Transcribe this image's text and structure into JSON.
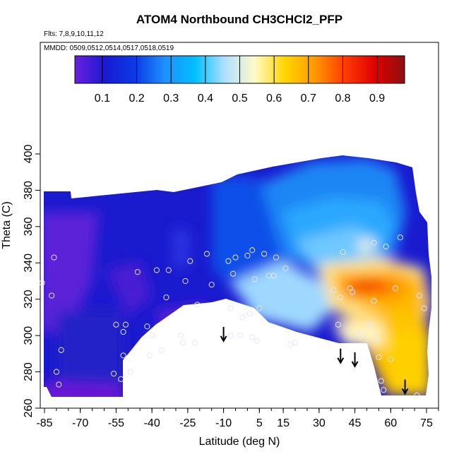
{
  "chart_data": {
    "type": "heatmap",
    "title": "ATOM4 Northbound CH3CHCl2_PFP",
    "flights_label": "Flts: 7,8,9,10,11,12",
    "dates_label": "MMDD: 0509,0512,0514,0517,0518,0519",
    "xlabel": "Latitude (deg N)",
    "ylabel": "Theta (C)",
    "xlim": [
      -87,
      83
    ],
    "ylim": [
      260,
      403
    ],
    "x_ticks": [
      -85,
      -70,
      -55,
      -40,
      -25,
      -10,
      5,
      15,
      30,
      45,
      60,
      75
    ],
    "y_ticks": [
      260,
      280,
      300,
      320,
      340,
      360,
      380,
      400
    ],
    "colorbar": {
      "range": [
        0.02,
        0.98
      ],
      "ticks": [
        0.1,
        0.2,
        0.3,
        0.4,
        0.5,
        0.6,
        0.7,
        0.8,
        0.9
      ],
      "colors": [
        "#6a1fe0",
        "#1a1ad0",
        "#0a3ae6",
        "#1e90ff",
        "#00bfff",
        "#b0e0ff",
        "#fffac8",
        "#ffd700",
        "#ff9900",
        "#ff3c00",
        "#e00000",
        "#8b1010"
      ]
    },
    "samples": [
      {
        "lat": -86,
        "theta": 329
      },
      {
        "lat": -82,
        "theta": 322
      },
      {
        "lat": -81,
        "theta": 343
      },
      {
        "lat": -80,
        "theta": 280
      },
      {
        "lat": -79,
        "theta": 273
      },
      {
        "lat": -78,
        "theta": 292
      },
      {
        "lat": -56,
        "theta": 279
      },
      {
        "lat": -55,
        "theta": 306
      },
      {
        "lat": -53,
        "theta": 276
      },
      {
        "lat": -52,
        "theta": 289
      },
      {
        "lat": -52,
        "theta": 302
      },
      {
        "lat": -51,
        "theta": 306
      },
      {
        "lat": -49,
        "theta": 280
      },
      {
        "lat": -46,
        "theta": 335
      },
      {
        "lat": -42,
        "theta": 305
      },
      {
        "lat": -41,
        "theta": 289
      },
      {
        "lat": -40,
        "theta": 300
      },
      {
        "lat": -38,
        "theta": 336
      },
      {
        "lat": -36,
        "theta": 292
      },
      {
        "lat": -34,
        "theta": 321
      },
      {
        "lat": -33,
        "theta": 336
      },
      {
        "lat": -28,
        "theta": 300
      },
      {
        "lat": -27,
        "theta": 296
      },
      {
        "lat": -26,
        "theta": 330
      },
      {
        "lat": -24,
        "theta": 341
      },
      {
        "lat": -22,
        "theta": 296
      },
      {
        "lat": -21,
        "theta": 317
      },
      {
        "lat": -17,
        "theta": 345
      },
      {
        "lat": -15,
        "theta": 328
      },
      {
        "lat": -8,
        "theta": 341
      },
      {
        "lat": -7,
        "theta": 300
      },
      {
        "lat": -7,
        "theta": 315
      },
      {
        "lat": -6,
        "theta": 334
      },
      {
        "lat": -5,
        "theta": 343
      },
      {
        "lat": -3,
        "theta": 300
      },
      {
        "lat": -2,
        "theta": 310
      },
      {
        "lat": 0,
        "theta": 344
      },
      {
        "lat": 1,
        "theta": 312
      },
      {
        "lat": 2,
        "theta": 299
      },
      {
        "lat": 2,
        "theta": 347
      },
      {
        "lat": 3,
        "theta": 331
      },
      {
        "lat": 4,
        "theta": 297
      },
      {
        "lat": 5,
        "theta": 315
      },
      {
        "lat": 7,
        "theta": 345
      },
      {
        "lat": 9,
        "theta": 333
      },
      {
        "lat": 11,
        "theta": 333
      },
      {
        "lat": 12,
        "theta": 343
      },
      {
        "lat": 16,
        "theta": 337
      },
      {
        "lat": 18,
        "theta": 295
      },
      {
        "lat": 20,
        "theta": 296
      },
      {
        "lat": 36,
        "theta": 325
      },
      {
        "lat": 38,
        "theta": 306
      },
      {
        "lat": 39,
        "theta": 321
      },
      {
        "lat": 40,
        "theta": 346
      },
      {
        "lat": 43,
        "theta": 326
      },
      {
        "lat": 44,
        "theta": 324
      },
      {
        "lat": 47,
        "theta": 301
      },
      {
        "lat": 51,
        "theta": 306
      },
      {
        "lat": 53,
        "theta": 319
      },
      {
        "lat": 53,
        "theta": 351
      },
      {
        "lat": 54,
        "theta": 298
      },
      {
        "lat": 55,
        "theta": 288
      },
      {
        "lat": 56,
        "theta": 275
      },
      {
        "lat": 57,
        "theta": 270
      },
      {
        "lat": 58,
        "theta": 349
      },
      {
        "lat": 60,
        "theta": 287
      },
      {
        "lat": 62,
        "theta": 326
      },
      {
        "lat": 64,
        "theta": 354
      },
      {
        "lat": 66,
        "theta": 270
      },
      {
        "lat": 71,
        "theta": 267
      },
      {
        "lat": 72,
        "theta": 322
      },
      {
        "lat": 74,
        "theta": 315
      }
    ],
    "arrows": [
      {
        "lat": -10,
        "theta": 297
      },
      {
        "lat": 39,
        "theta": 285
      },
      {
        "lat": 45,
        "theta": 283
      },
      {
        "lat": 66,
        "theta": 268
      }
    ]
  }
}
